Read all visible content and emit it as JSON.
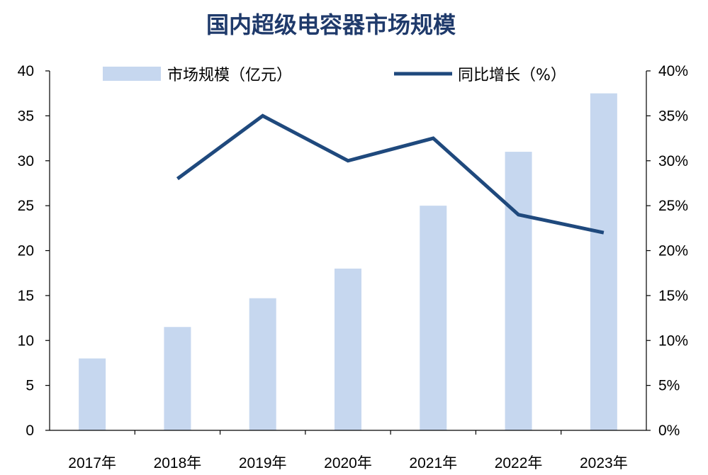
{
  "chart_data": {
    "type": "bar",
    "title": "国内超级电容器市场规模",
    "categories": [
      "2017年",
      "2018年",
      "2019年",
      "2020年",
      "2021年",
      "2022年",
      "2023年"
    ],
    "series": [
      {
        "name": "市场规模（亿元）",
        "type": "bar",
        "axis": "left",
        "color": "#C6D7EF",
        "values": [
          8,
          11.5,
          14.7,
          18,
          25,
          31,
          37.5
        ]
      },
      {
        "name": "同比增长（%）",
        "type": "line",
        "axis": "right",
        "color": "#1F497D",
        "values": [
          null,
          28,
          35,
          30,
          32.5,
          24,
          22
        ]
      }
    ],
    "y_left": {
      "ylim": [
        0,
        40
      ],
      "ticks": [
        0,
        5,
        10,
        15,
        20,
        25,
        30,
        35,
        40
      ],
      "tick_labels": [
        "0",
        "5",
        "10",
        "15",
        "20",
        "25",
        "30",
        "35",
        "40"
      ]
    },
    "y_right": {
      "ylim": [
        0,
        40
      ],
      "ticks": [
        0,
        5,
        10,
        15,
        20,
        25,
        30,
        35,
        40
      ],
      "tick_labels": [
        "0%",
        "5%",
        "10%",
        "15%",
        "20%",
        "25%",
        "30%",
        "35%",
        "40%"
      ]
    },
    "legend": {
      "placement": "top",
      "items": [
        "市场规模（亿元）",
        "同比增长（%）"
      ]
    },
    "grid": false
  }
}
